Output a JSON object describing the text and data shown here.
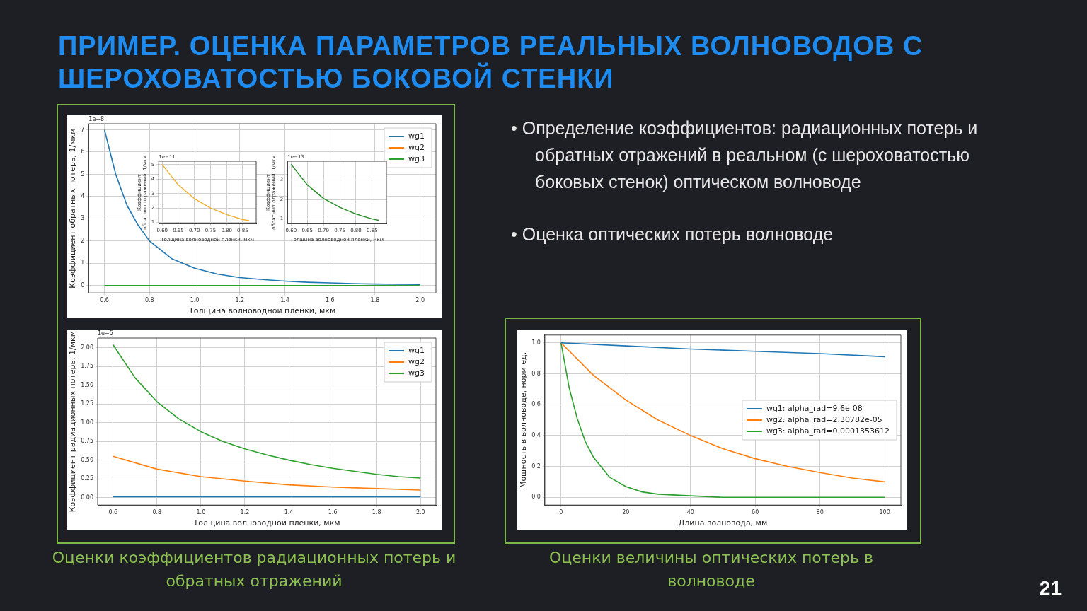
{
  "chart_data": [
    {
      "type": "other",
      "title": "ПРИМЕР. ОЦЕНКА ПАРАМЕТРОВ РЕАЛЬНЫХ ВОЛНОВОДОВ С ШЕРОХОВАТОСТЬЮ БОКОВОЙ СТЕНКИ",
      "annotations": [
        "• Определение коэффициентов: радиационных потерь и обратных отражений в реальном (с шероховатостью боковых стенок) оптическом волноводе",
        "• Оценка оптических потерь волноводе",
        "21"
      ]
    },
    {
      "type": "line",
      "xlabel": "Толщина волноводной пленки, мкм",
      "ylabel": "Коэффициент обратных потерь, 1/мкм",
      "annotations": [
        "1e−8"
      ],
      "xlim": [
        0.53,
        2.07
      ],
      "ylim": [
        -0.33,
        7.27
      ],
      "xticks": [
        0.6,
        0.8,
        {
          "value": 1,
          "label": "1.0"
        },
        1.2,
        1.4,
        1.6,
        1.8,
        {
          "value": 2,
          "label": "2.0"
        }
      ],
      "yticks": [
        0,
        1,
        2,
        3,
        4,
        5,
        6,
        7
      ],
      "grid": true,
      "legend": "top right",
      "series": [
        {
          "name": "wg1",
          "color": "#1f77b4",
          "x": [
            0.6,
            0.65,
            0.7,
            0.75,
            0.8,
            0.9,
            1.0,
            1.1,
            1.2,
            1.3,
            1.4,
            1.5,
            1.6,
            1.7,
            1.8,
            1.9,
            2.0
          ],
          "values": [
            7.0,
            5.0,
            3.6,
            2.7,
            2.0,
            1.2,
            0.78,
            0.52,
            0.36,
            0.27,
            0.2,
            0.15,
            0.12,
            0.09,
            0.07,
            0.06,
            0.05
          ]
        },
        {
          "name": "wg2",
          "color": "#ff7f0e",
          "values": [
            null
          ]
        },
        {
          "name": "wg3",
          "color": "#2ca02c",
          "x": [
            0.6,
            2.0
          ],
          "values": [
            0,
            0
          ]
        }
      ]
    },
    {
      "type": "line",
      "xlabel": "Толщина волноводной пленки, мкм",
      "ylabel": "Коэффициент\nобратных отражений, 1/мкм",
      "annotations": [
        "1e−11"
      ],
      "xlim": [
        0.589,
        0.892
      ],
      "ylim": [
        0.92,
        5.24
      ],
      "xticks": [
        {
          "value": 0.6,
          "label": "0.60"
        },
        0.65,
        {
          "value": 0.7,
          "label": "0.70"
        },
        0.75,
        {
          "value": 0.8,
          "label": "0.80"
        },
        0.85
      ],
      "yticks": [
        1,
        2,
        3,
        4,
        5
      ],
      "grid": true,
      "series": [
        {
          "color": "#f0b030",
          "x": [
            0.6,
            0.65,
            0.7,
            0.75,
            0.8,
            0.85,
            0.87
          ],
          "values": [
            5.0,
            3.6,
            2.65,
            2.0,
            1.55,
            1.2,
            1.13
          ]
        }
      ]
    },
    {
      "type": "line",
      "xlabel": "Толщина волноводной пленки, мкм",
      "ylabel": "Коэффициент\nобратных отражений, 1/мкм",
      "annotations": [
        "1e−13"
      ],
      "xlim": [
        0.589,
        0.894
      ],
      "ylim": [
        0.76,
        3.96
      ],
      "xticks": [
        {
          "value": 0.6,
          "label": "0.60"
        },
        0.65,
        {
          "value": 0.7,
          "label": "0.70"
        },
        0.75,
        {
          "value": 0.8,
          "label": "0.80"
        },
        0.85
      ],
      "yticks": [
        1,
        2,
        3
      ],
      "grid": true,
      "series": [
        {
          "color": "#228b22",
          "x": [
            0.6,
            0.65,
            0.7,
            0.75,
            0.8,
            0.85,
            0.87
          ],
          "values": [
            3.8,
            2.75,
            2.05,
            1.6,
            1.25,
            1.0,
            0.93
          ]
        }
      ]
    },
    {
      "type": "line",
      "xlabel": "Толщина волноводной пленки, мкм",
      "ylabel": "Коэффициент радиационных потерь, 1/мкм",
      "annotations": [
        "1e−5",
        "Оценки коэффициентов радиационных потерь и обратных отражений"
      ],
      "xlim": [
        0.53,
        2.07
      ],
      "ylim": [
        -0.1,
        2.13
      ],
      "xticks": [
        0.6,
        0.8,
        {
          "value": 1,
          "label": "1.0"
        },
        1.2,
        1.4,
        1.6,
        1.8,
        {
          "value": 2,
          "label": "2.0"
        }
      ],
      "yticks": [
        {
          "value": 0,
          "label": "0.00"
        },
        0.25,
        {
          "value": 0.5,
          "label": "0.50"
        },
        0.75,
        {
          "value": 1,
          "label": "1.00"
        },
        1.25,
        {
          "value": 1.5,
          "label": "1.50"
        },
        1.75,
        {
          "value": 2,
          "label": "2.00"
        }
      ],
      "grid": true,
      "legend": "top right",
      "series": [
        {
          "name": "wg1",
          "color": "#1f77b4",
          "x": [
            0.6,
            2.0
          ],
          "values": [
            0.01,
            0.01
          ]
        },
        {
          "name": "wg2",
          "color": "#ff7f0e",
          "x": [
            0.6,
            0.8,
            1.0,
            1.2,
            1.4,
            1.6,
            1.8,
            2.0
          ],
          "values": [
            0.55,
            0.38,
            0.28,
            0.22,
            0.17,
            0.14,
            0.12,
            0.1
          ]
        },
        {
          "name": "wg3",
          "color": "#2ca02c",
          "x": [
            0.6,
            0.7,
            0.8,
            0.9,
            1.0,
            1.1,
            1.2,
            1.3,
            1.4,
            1.5,
            1.6,
            1.7,
            1.8,
            1.9,
            2.0
          ],
          "values": [
            2.04,
            1.6,
            1.28,
            1.05,
            0.88,
            0.75,
            0.65,
            0.57,
            0.5,
            0.44,
            0.39,
            0.35,
            0.31,
            0.28,
            0.26
          ]
        }
      ]
    },
    {
      "type": "line",
      "xlabel": "Длина волновода, мм",
      "ylabel": "Мощность в волноводе, норм.ед.",
      "annotations": [
        "Оценки величины оптических потерь в волноводе"
      ],
      "xlim": [
        -5,
        105
      ],
      "ylim": [
        -0.05,
        1.05
      ],
      "xticks": [
        0,
        20,
        40,
        60,
        80,
        100
      ],
      "yticks": [
        {
          "value": 0,
          "label": "0.0"
        },
        0.2,
        0.4,
        0.6,
        0.8,
        {
          "value": 1,
          "label": "1.0"
        }
      ],
      "grid": true,
      "legend": "center right",
      "series": [
        {
          "name": "wg1: alpha_rad=9.6e-08",
          "color": "#1f77b4",
          "x": [
            0,
            20,
            40,
            60,
            80,
            100
          ],
          "values": [
            1,
            0.98,
            0.96,
            0.945,
            0.93,
            0.91
          ]
        },
        {
          "name": "wg2: alpha_rad=2.30782e-05",
          "color": "#ff7f0e",
          "x": [
            0,
            10,
            20,
            30,
            40,
            50,
            60,
            70,
            80,
            90,
            100
          ],
          "values": [
            1,
            0.79,
            0.63,
            0.5,
            0.4,
            0.315,
            0.25,
            0.2,
            0.16,
            0.125,
            0.1
          ]
        },
        {
          "name": "wg3: alpha_rad=0.0001353612",
          "color": "#2ca02c",
          "x": [
            0,
            2.5,
            5,
            7.5,
            10,
            15,
            20,
            25,
            30,
            40,
            50,
            100
          ],
          "values": [
            1,
            0.71,
            0.51,
            0.36,
            0.26,
            0.13,
            0.07,
            0.035,
            0.02,
            0.01,
            0,
            0
          ]
        }
      ]
    }
  ]
}
